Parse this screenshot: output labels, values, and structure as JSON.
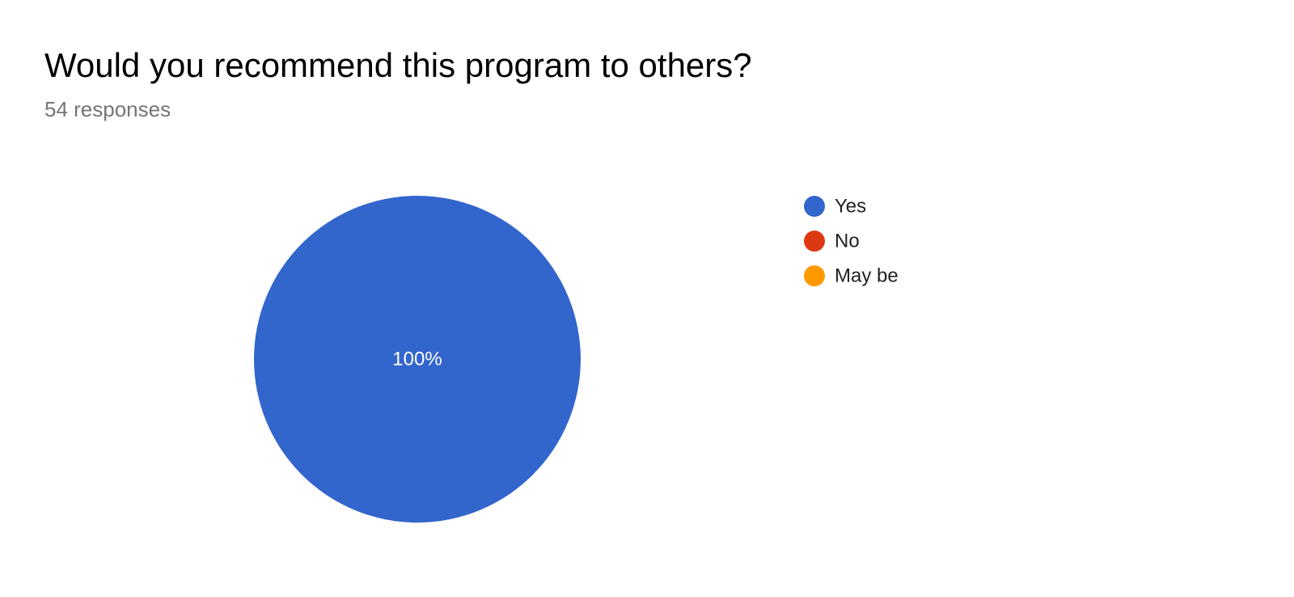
{
  "chart_data": {
    "type": "pie",
    "title": "Would you recommend this program to others?",
    "subtitle": "54 responses",
    "categories": [
      "Yes",
      "No",
      "May be"
    ],
    "values": [
      100,
      0,
      0
    ],
    "value_labels": [
      "100%",
      null,
      null
    ],
    "colors": [
      "#3366cc",
      "#dc3912",
      "#ff9900"
    ],
    "legend": "right"
  }
}
